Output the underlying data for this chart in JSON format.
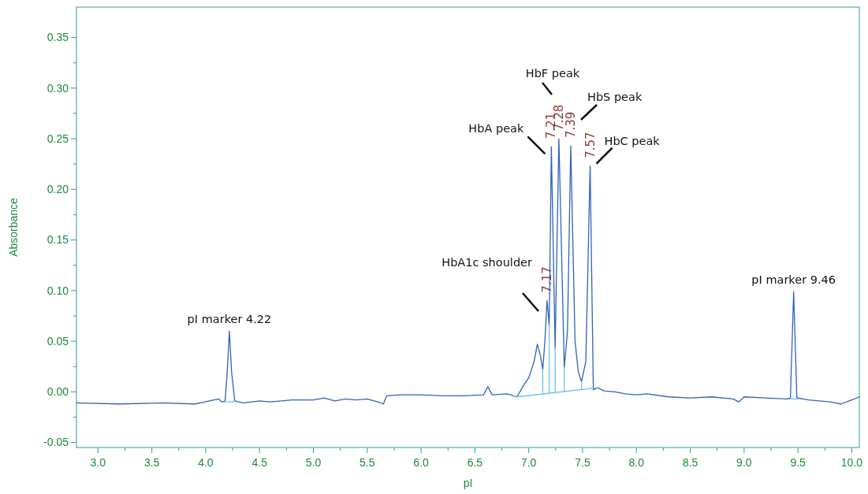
{
  "chart_data": {
    "type": "line",
    "xlabel": "pI",
    "ylabel": "Absorbance",
    "xlim": [
      2.8,
      10.07
    ],
    "ylim": [
      -0.055,
      0.38
    ],
    "xticks": [
      {
        "value": 3,
        "label": "3.0"
      },
      {
        "value": 3.25,
        "label": null
      },
      {
        "value": 3.5,
        "label": "3.5"
      },
      {
        "value": 3.75,
        "label": null
      },
      {
        "value": 4,
        "label": "4.0"
      },
      {
        "value": 4.25,
        "label": null
      },
      {
        "value": 4.5,
        "label": "4.5"
      },
      {
        "value": 4.75,
        "label": null
      },
      {
        "value": 5,
        "label": "5.0"
      },
      {
        "value": 5.25,
        "label": null
      },
      {
        "value": 5.5,
        "label": "5.5"
      },
      {
        "value": 5.75,
        "label": null
      },
      {
        "value": 6,
        "label": "6.0"
      },
      {
        "value": 6.25,
        "label": null
      },
      {
        "value": 6.5,
        "label": "6.5"
      },
      {
        "value": 6.75,
        "label": null
      },
      {
        "value": 7,
        "label": "7.0"
      },
      {
        "value": 7.25,
        "label": null
      },
      {
        "value": 7.5,
        "label": "7.5"
      },
      {
        "value": 7.75,
        "label": null
      },
      {
        "value": 8,
        "label": "8.0"
      },
      {
        "value": 8.25,
        "label": null
      },
      {
        "value": 8.5,
        "label": "8.5"
      },
      {
        "value": 8.75,
        "label": null
      },
      {
        "value": 9,
        "label": "9.0"
      },
      {
        "value": 9.25,
        "label": null
      },
      {
        "value": 9.5,
        "label": "9.5"
      },
      {
        "value": 9.75,
        "label": null
      },
      {
        "value": 10,
        "label": "10.0"
      }
    ],
    "yticks": [
      {
        "value": -0.05,
        "label": "-0.05"
      },
      {
        "value": -0.025,
        "label": null
      },
      {
        "value": 0,
        "label": "0.00"
      },
      {
        "value": 0.025,
        "label": null
      },
      {
        "value": 0.05,
        "label": "0.05"
      },
      {
        "value": 0.075,
        "label": null
      },
      {
        "value": 0.1,
        "label": "0.10"
      },
      {
        "value": 0.125,
        "label": null
      },
      {
        "value": 0.15,
        "label": "0.15"
      },
      {
        "value": 0.175,
        "label": null
      },
      {
        "value": 0.2,
        "label": "0.20"
      },
      {
        "value": 0.225,
        "label": null
      },
      {
        "value": 0.25,
        "label": "0.25"
      },
      {
        "value": 0.275,
        "label": null
      },
      {
        "value": 0.3,
        "label": "0.30"
      },
      {
        "value": 0.325,
        "label": null
      },
      {
        "value": 0.35,
        "label": "0.35"
      }
    ],
    "grid": false,
    "series": [
      {
        "color": "#2f63b8",
        "x": [
          2.8,
          3.2,
          3.6,
          3.9,
          4.12,
          4.15,
          4.18,
          4.2,
          4.22,
          4.24,
          4.27,
          4.35,
          4.5,
          4.6,
          4.8,
          5.0,
          5.1,
          5.2,
          5.3,
          5.4,
          5.5,
          5.6,
          5.65,
          5.68,
          5.8,
          6.0,
          6.2,
          6.4,
          6.58,
          6.62,
          6.66,
          6.8,
          6.89,
          6.95,
          7.0,
          7.05,
          7.08,
          7.11,
          7.13,
          7.15,
          7.17,
          7.19,
          7.21,
          7.245,
          7.28,
          7.33,
          7.36,
          7.39,
          7.43,
          7.46,
          7.49,
          7.53,
          7.57,
          7.6,
          7.64,
          7.7,
          7.8,
          7.9,
          8.0,
          8.1,
          8.3,
          8.5,
          8.7,
          8.9,
          8.95,
          9.0,
          9.2,
          9.4,
          9.43,
          9.46,
          9.49,
          9.6,
          9.8,
          9.9,
          10.0,
          10.07
        ],
        "values": [
          -0.011,
          -0.012,
          -0.011,
          -0.012,
          -0.007,
          -0.01,
          -0.009,
          0.02,
          0.06,
          0.02,
          -0.009,
          -0.011,
          -0.009,
          -0.01,
          -0.008,
          -0.008,
          -0.006,
          -0.009,
          -0.007,
          -0.008,
          -0.007,
          -0.01,
          -0.012,
          -0.004,
          -0.003,
          -0.003,
          -0.004,
          -0.004,
          -0.003,
          0.005,
          -0.003,
          -0.002,
          -0.005,
          0.006,
          0.014,
          0.03,
          0.047,
          0.035,
          0.022,
          0.05,
          0.09,
          0.066,
          0.242,
          0.043,
          0.25,
          0.024,
          0.06,
          0.243,
          0.05,
          0.02,
          0.01,
          0.03,
          0.223,
          0.002,
          0.004,
          0.001,
          0,
          -0.002,
          -0.003,
          -0.002,
          -0.005,
          -0.006,
          -0.005,
          -0.007,
          -0.01,
          -0.005,
          -0.006,
          -0.007,
          -0.006,
          0.099,
          -0.006,
          -0.008,
          -0.01,
          -0.012,
          -0.008,
          -0.005
        ]
      },
      {
        "color": "#6ec1e8",
        "x": [
          4.17,
          4.27
        ],
        "values": [
          -0.01,
          -0.01
        ]
      },
      {
        "color": "#6ec1e8",
        "x": [
          9.42,
          9.5
        ],
        "values": [
          -0.007,
          -0.007
        ]
      },
      {
        "color": "#6ec1e8",
        "x": [
          6.89,
          7.64
        ],
        "values": [
          -0.005,
          0.004
        ]
      },
      {
        "color": "#6ec1e8",
        "x": [
          7.13,
          7.13
        ],
        "values": [
          -0.002,
          0.022
        ]
      },
      {
        "color": "#6ec1e8",
        "x": [
          7.19,
          7.19
        ],
        "values": [
          -0.001,
          0.066
        ]
      },
      {
        "color": "#6ec1e8",
        "x": [
          7.245,
          7.245
        ],
        "values": [
          -0.001,
          0.043
        ]
      },
      {
        "color": "#6ec1e8",
        "x": [
          7.33,
          7.33
        ],
        "values": [
          0,
          0.024
        ]
      },
      {
        "color": "#6ec1e8",
        "x": [
          7.49,
          7.49
        ],
        "values": [
          0.002,
          0.01
        ]
      }
    ],
    "annotations": [
      {
        "text": "pI marker 4.22",
        "x": 4.22,
        "y": 0.06
      },
      "HbA1c shoulder",
      {
        "text": "HbA peak",
        "x": 7.21,
        "y": 0.242
      },
      "HbF peak",
      "HbS peak",
      {
        "text": "HbC peak",
        "x": 7.57,
        "y": 0.223
      },
      {
        "text": "pI marker 9.46",
        "x": 9.46,
        "y": 0.099
      },
      {
        "text": "7.17",
        "x": 7.17,
        "y": 0.09
      },
      {
        "text": "7.21",
        "x": 7.21,
        "y": 0.242
      },
      {
        "text": "7.28",
        "x": 7.28,
        "y": 0.25
      },
      {
        "text": "7.39",
        "x": 7.39,
        "y": 0.243
      },
      {
        "text": "7.57",
        "x": 7.57,
        "y": 0.223
      }
    ]
  }
}
